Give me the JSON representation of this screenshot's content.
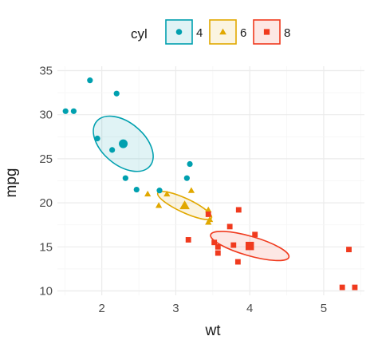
{
  "chart_data": {
    "type": "scatter",
    "xlabel": "wt",
    "ylabel": "mpg",
    "xlim": [
      1.4,
      5.55
    ],
    "ylim": [
      9.5,
      35.5
    ],
    "xticks": [
      2,
      3,
      4,
      5
    ],
    "yticks": [
      10,
      15,
      20,
      25,
      30,
      35
    ],
    "grid": true,
    "legend": {
      "title": "cyl",
      "placement": "top",
      "entries": [
        {
          "label": "4",
          "shape": "circle",
          "color": "#00A0AF"
        },
        {
          "label": "6",
          "shape": "triangle",
          "color": "#E1A800"
        },
        {
          "label": "8",
          "shape": "square",
          "color": "#F03A1E"
        }
      ]
    },
    "series": [
      {
        "name": "4",
        "color": "#00A0AF",
        "shape": "circle",
        "points": [
          [
            1.51,
            30.4
          ],
          [
            1.62,
            30.4
          ],
          [
            1.84,
            33.9
          ],
          [
            1.94,
            27.3
          ],
          [
            2.14,
            26.0
          ],
          [
            2.2,
            32.4
          ],
          [
            2.32,
            22.8
          ],
          [
            2.47,
            21.5
          ],
          [
            2.78,
            21.4
          ],
          [
            3.15,
            22.8
          ],
          [
            3.19,
            24.4
          ]
        ],
        "mean": [
          2.29,
          26.7
        ],
        "ellipse": {
          "center": [
            2.29,
            26.7
          ],
          "rx_units": 0.47,
          "ry_units": 2.4,
          "angle_deg": 40
        }
      },
      {
        "name": "6",
        "color": "#E1A800",
        "shape": "triangle",
        "points": [
          [
            2.62,
            21.0
          ],
          [
            2.77,
            19.7
          ],
          [
            2.88,
            21.0
          ],
          [
            3.21,
            21.4
          ],
          [
            3.44,
            17.8
          ],
          [
            3.44,
            19.2
          ],
          [
            3.46,
            18.1
          ]
        ],
        "mean": [
          3.12,
          19.7
        ],
        "ellipse": {
          "center": [
            3.12,
            19.7
          ],
          "rx_units": 0.4,
          "ry_units": 0.8,
          "angle_deg": 25
        }
      },
      {
        "name": "8",
        "color": "#F03A1E",
        "shape": "square",
        "points": [
          [
            3.17,
            15.8
          ],
          [
            3.44,
            18.7
          ],
          [
            3.52,
            15.5
          ],
          [
            3.57,
            14.3
          ],
          [
            3.57,
            15.0
          ],
          [
            3.73,
            17.3
          ],
          [
            3.78,
            15.2
          ],
          [
            3.84,
            13.3
          ],
          [
            3.85,
            19.2
          ],
          [
            4.07,
            16.4
          ],
          [
            5.25,
            10.4
          ],
          [
            5.34,
            14.7
          ],
          [
            5.42,
            10.4
          ]
        ],
        "mean": [
          4.0,
          15.1
        ],
        "ellipse": {
          "center": [
            4.0,
            15.1
          ],
          "rx_units": 0.55,
          "ry_units": 1.1,
          "angle_deg": 16
        }
      }
    ]
  }
}
